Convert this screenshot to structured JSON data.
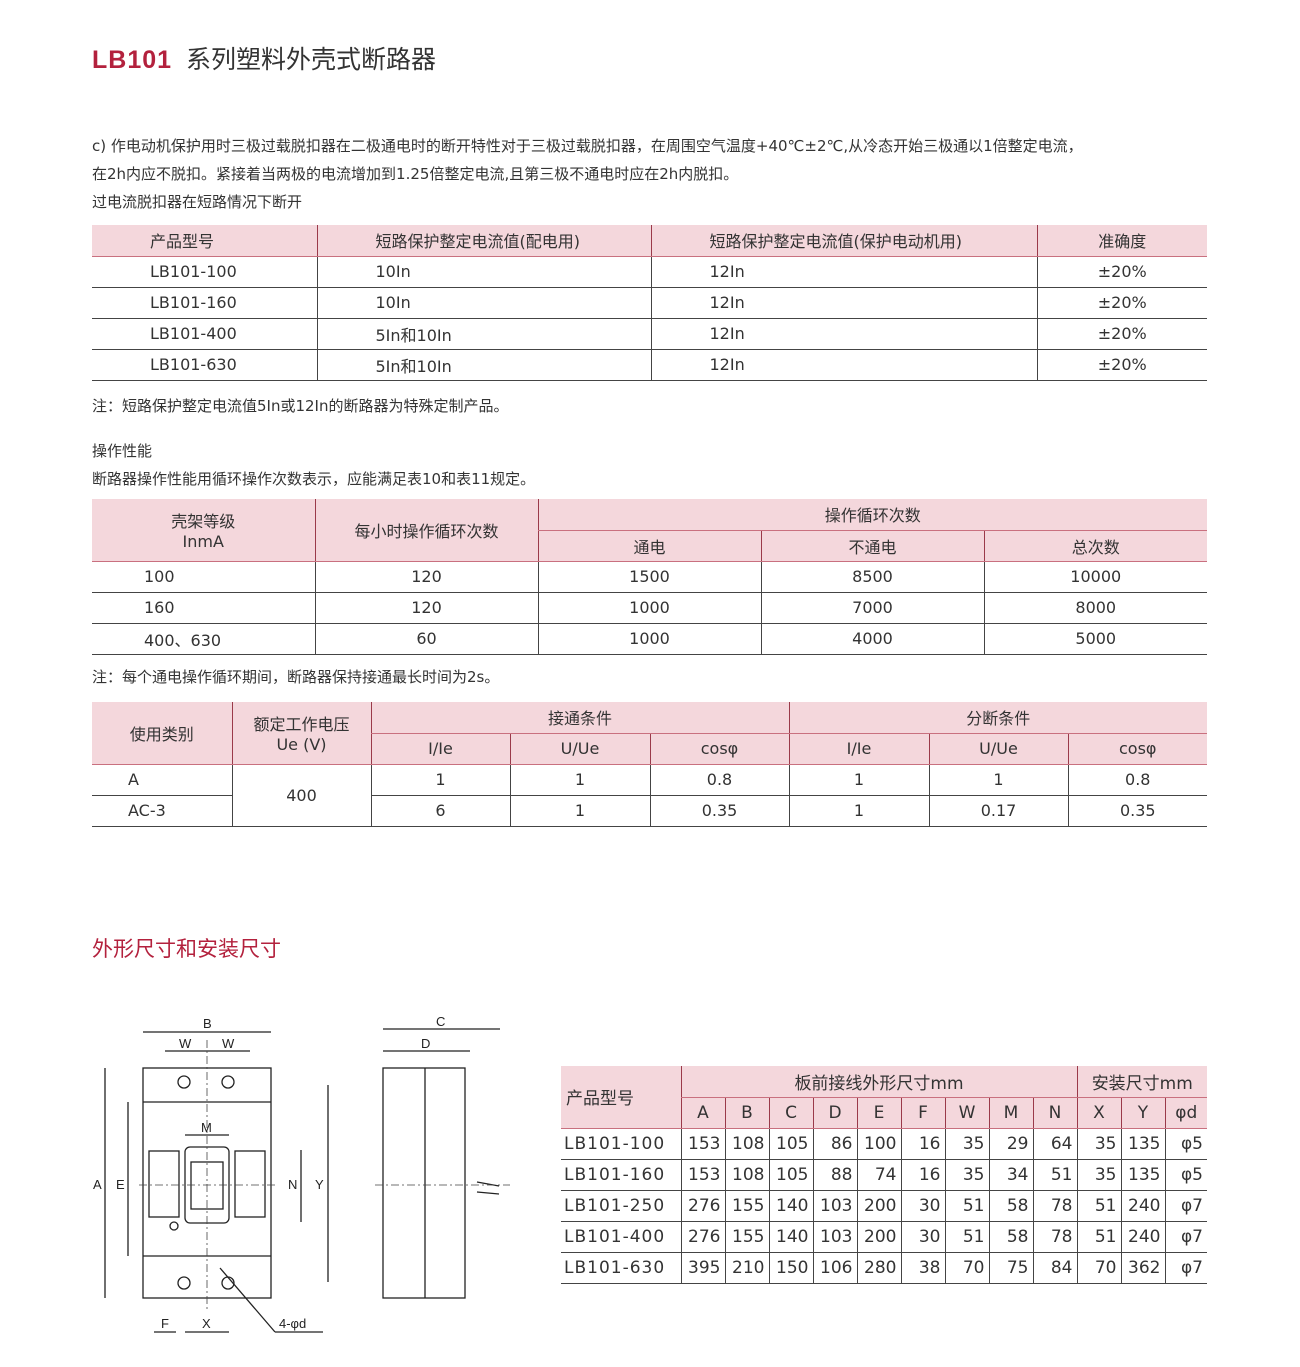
{
  "header": {
    "model": "LB101",
    "title": "系列塑料外壳式断路器"
  },
  "intro": {
    "line1": "c) 作电动机保护用时三极过载脱扣器在二极通电时的断开特性对于三极过载脱扣器，在周围空气温度+40℃±2℃,从冷态开始三极通以1倍整定电流，",
    "line2": "在2h内应不脱扣。紧接着当两极的电流增加到1.25倍整定电流,且第三极不通电时应在2h内脱扣。",
    "line3": "过电流脱扣器在短路情况下断开"
  },
  "short_circuit_table": {
    "headers": [
      "产品型号",
      "短路保护整定电流值(配电用)",
      "短路保护整定电流值(保护电动机用)",
      "准确度"
    ],
    "rows": [
      [
        "LB101-100",
        "10In",
        "12In",
        "±20%"
      ],
      [
        "LB101-160",
        "10In",
        "12In",
        "±20%"
      ],
      [
        "LB101-400",
        "5In和10In",
        "12In",
        "±20%"
      ],
      [
        "LB101-630",
        "5In和10In",
        "12In",
        "±20%"
      ]
    ],
    "note": "注：短路保护整定电流值5In或12In的断路器为特殊定制产品。"
  },
  "operation": {
    "heading": "操作性能",
    "desc": "断路器操作性能用循环操作次数表示，应能满足表10和表11规定。",
    "table": {
      "h_frame": "壳架等级",
      "h_frame2": "InmA",
      "h_per_hour": "每小时操作循环次数",
      "h_cycles": "操作循环次数",
      "h_on": "通电",
      "h_off": "不通电",
      "h_total": "总次数",
      "rows": [
        [
          "100",
          "120",
          "1500",
          "8500",
          "10000"
        ],
        [
          "160",
          "120",
          "1000",
          "7000",
          "8000"
        ],
        [
          "400、630",
          "60",
          "1000",
          "4000",
          "5000"
        ]
      ]
    },
    "note": "注：每个通电操作循环期间，断路器保持接通最长时间为2s。"
  },
  "category_table": {
    "h_category": "使用类别",
    "h_voltage": "额定工作电压",
    "h_voltage2": "Ue (V)",
    "h_make": "接通条件",
    "h_break": "分断条件",
    "sub": [
      "I/Ie",
      "U/Ue",
      "cosφ",
      "I/Ie",
      "U/Ue",
      "cosφ"
    ],
    "voltage": "400",
    "rows": [
      [
        "A",
        "1",
        "1",
        "0.8",
        "1",
        "1",
        "0.8"
      ],
      [
        "AC-3",
        "6",
        "1",
        "0.35",
        "1",
        "0.17",
        "0.35"
      ]
    ]
  },
  "dimensions": {
    "heading": "外形尺寸和安装尺寸",
    "drawing_labels": {
      "A": "A",
      "B": "B",
      "C": "C",
      "D": "D",
      "E": "E",
      "F": "F",
      "W": "W",
      "M": "M",
      "N": "N",
      "X": "X",
      "Y": "Y",
      "hole": "4-φd"
    },
    "table": {
      "h_model": "产品型号",
      "h_outline": "板前接线外形尺寸mm",
      "h_mount": "安装尺寸mm",
      "cols": [
        "A",
        "B",
        "C",
        "D",
        "E",
        "F",
        "W",
        "M",
        "N",
        "X",
        "Y",
        "φd"
      ],
      "rows": [
        [
          "LB101-100",
          "153",
          "108",
          "105",
          "86",
          "100",
          "16",
          "35",
          "29",
          "64",
          "35",
          "135",
          "φ5"
        ],
        [
          "LB101-160",
          "153",
          "108",
          "105",
          "88",
          "74",
          "16",
          "35",
          "34",
          "51",
          "35",
          "135",
          "φ5"
        ],
        [
          "LB101-250",
          "276",
          "155",
          "140",
          "103",
          "200",
          "30",
          "51",
          "58",
          "78",
          "51",
          "240",
          "φ7"
        ],
        [
          "LB101-400",
          "276",
          "155",
          "140",
          "103",
          "200",
          "30",
          "51",
          "58",
          "78",
          "51",
          "240",
          "φ7"
        ],
        [
          "LB101-630",
          "395",
          "210",
          "150",
          "106",
          "280",
          "38",
          "70",
          "75",
          "84",
          "70",
          "362",
          "φ7"
        ]
      ]
    }
  },
  "colors": {
    "accent": "#b3213d",
    "header_bg": "#f4d7dc"
  }
}
